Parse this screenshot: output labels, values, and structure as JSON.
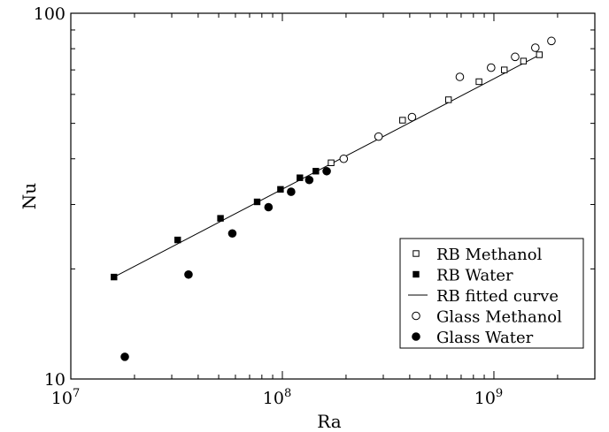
{
  "chart_data": {
    "type": "scatter",
    "xlabel": "Ra",
    "ylabel": "Nu",
    "xscale": "log",
    "yscale": "log",
    "xlim": [
      10000000,
      3000000000
    ],
    "ylim": [
      10,
      100
    ],
    "grid": false,
    "legend_position": "bottom-right",
    "x_ticks": [
      {
        "value": 10000000,
        "base": "10",
        "exponent": "7"
      },
      {
        "value": 100000000,
        "base": "10",
        "exponent": "8"
      },
      {
        "value": 1000000000,
        "base": "10",
        "exponent": "9"
      }
    ],
    "y_ticks": [
      {
        "value": 10,
        "label": "10"
      },
      {
        "value": 100,
        "label": "100"
      }
    ],
    "series": [
      {
        "name": "RB Methanol",
        "marker": "open-square",
        "x": [
          170000000,
          370000000,
          610000000,
          850000000,
          1120000000,
          1380000000,
          1640000000
        ],
        "y": [
          39,
          51,
          58,
          65,
          70,
          74,
          77
        ]
      },
      {
        "name": "RB Water",
        "marker": "filled-square",
        "x": [
          16000000,
          32000000,
          51000000,
          76000000,
          98000000,
          121000000,
          144000000
        ],
        "y": [
          19,
          24,
          27.5,
          30.5,
          33,
          35.5,
          37
        ]
      },
      {
        "name": "RB fitted curve",
        "marker": "line",
        "x": [
          16000000,
          1650000000
        ],
        "y": [
          19,
          77
        ]
      },
      {
        "name": "Glass Methanol",
        "marker": "open-circle",
        "x": [
          195000000,
          285000000,
          410000000,
          690000000,
          970000000,
          1260000000,
          1570000000,
          1870000000
        ],
        "y": [
          40,
          46,
          52,
          67,
          71,
          76,
          80.5,
          84
        ]
      },
      {
        "name": "Glass Water",
        "marker": "filled-circle",
        "x": [
          18000000,
          36000000,
          58000000,
          86000000,
          110000000,
          134000000,
          162000000
        ],
        "y": [
          11.5,
          19.3,
          25,
          29.5,
          32.5,
          35,
          37
        ]
      }
    ]
  }
}
